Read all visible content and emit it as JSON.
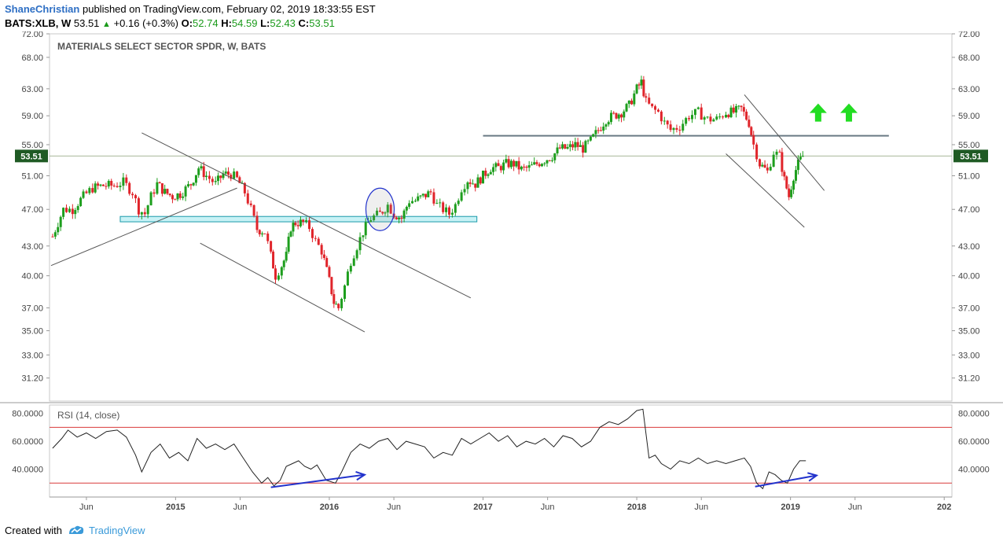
{
  "header": {
    "author": "ShaneChristian",
    "published": "published on TradingView.com, February 02, 2019 18:33:55 EST",
    "symbol": "BATS:XLB, W",
    "last": "53.51",
    "change": "+0.16 (+0.3%)",
    "o_label": "O:",
    "o_value": "52.74",
    "h_label": "H:",
    "h_value": "54.59",
    "l_label": "L:",
    "l_value": "52.43",
    "c_label": "C:",
    "c_value": "53.51"
  },
  "footer": {
    "created": "Created with",
    "brand": "TradingView"
  },
  "colors": {
    "up": "#1d9e1d",
    "down": "#e0242a",
    "rsi_band": "#d93a3a",
    "annotation_blue": "#2233cc",
    "arrow_green": "#22dd22",
    "support_fill": "#c8f2f6",
    "support_stroke": "#1a9aaa",
    "resistance": "#6a7a84",
    "price_tag_bg": "#1f5a24"
  },
  "chart_data": [
    {
      "type": "candlestick",
      "title": "MATERIALS SELECT SECTOR SPDR, W, BATS",
      "price_axis_ticks": [
        "72.00",
        "68.00",
        "63.00",
        "59.00",
        "55.00",
        "51.00",
        "47.00",
        "43.00",
        "40.00",
        "37.00",
        "35.00",
        "33.00",
        "31.20"
      ],
      "time_axis_ticks": [
        "Jun",
        "2015",
        "Jun",
        "2016",
        "Jun",
        "2017",
        "Jun",
        "2018",
        "Jun",
        "2019",
        "Jun",
        "202"
      ],
      "last_price_label": "53.51",
      "scale": "log",
      "ylim": [
        29.5,
        72.0
      ],
      "x_range": [
        2014.18,
        2020.05
      ],
      "close_series": [
        [
          2014.2,
          44.0
        ],
        [
          2014.27,
          47.0
        ],
        [
          2014.33,
          47.0
        ],
        [
          2014.4,
          48.5
        ],
        [
          2014.46,
          49.5
        ],
        [
          2014.53,
          49.8
        ],
        [
          2014.6,
          49.8
        ],
        [
          2014.66,
          50.2
        ],
        [
          2014.72,
          49.0
        ],
        [
          2014.76,
          47.0
        ],
        [
          2014.8,
          46.5
        ],
        [
          2014.84,
          48.5
        ],
        [
          2014.88,
          50.0
        ],
        [
          2014.93,
          49.0
        ],
        [
          2014.98,
          48.5
        ],
        [
          2015.03,
          48.8
        ],
        [
          2015.1,
          50.0
        ],
        [
          2015.15,
          52.0
        ],
        [
          2015.2,
          51.0
        ],
        [
          2015.26,
          50.0
        ],
        [
          2015.31,
          51.2
        ],
        [
          2015.36,
          51.2
        ],
        [
          2015.4,
          50.6
        ],
        [
          2015.45,
          49.0
        ],
        [
          2015.49,
          47.0
        ],
        [
          2015.53,
          44.8
        ],
        [
          2015.58,
          44.5
        ],
        [
          2015.62,
          42.0
        ],
        [
          2015.65,
          40.0
        ],
        [
          2015.69,
          41.0
        ],
        [
          2015.72,
          42.0
        ],
        [
          2015.75,
          45.0
        ],
        [
          2015.78,
          45.5
        ],
        [
          2015.83,
          45.5
        ],
        [
          2015.87,
          45.0
        ],
        [
          2015.91,
          43.5
        ],
        [
          2015.95,
          42.5
        ],
        [
          2016.0,
          39.5
        ],
        [
          2016.03,
          37.5
        ],
        [
          2016.06,
          37.0
        ],
        [
          2016.1,
          39.0
        ],
        [
          2016.14,
          41.5
        ],
        [
          2016.18,
          43.0
        ],
        [
          2016.22,
          44.5
        ],
        [
          2016.27,
          46.0
        ],
        [
          2016.33,
          46.5
        ],
        [
          2016.38,
          47.5
        ],
        [
          2016.42,
          46.5
        ],
        [
          2016.47,
          46.0
        ],
        [
          2016.52,
          48.0
        ],
        [
          2016.56,
          48.0
        ],
        [
          2016.61,
          48.5
        ],
        [
          2016.66,
          49.0
        ],
        [
          2016.7,
          47.5
        ],
        [
          2016.74,
          47.0
        ],
        [
          2016.78,
          46.5
        ],
        [
          2016.82,
          47.5
        ],
        [
          2016.86,
          49.5
        ],
        [
          2016.9,
          50.5
        ],
        [
          2016.95,
          50.0
        ],
        [
          2017.0,
          51.0
        ],
        [
          2017.05,
          52.0
        ],
        [
          2017.1,
          52.0
        ],
        [
          2017.15,
          52.5
        ],
        [
          2017.2,
          52.5
        ],
        [
          2017.25,
          51.8
        ],
        [
          2017.3,
          52.0
        ],
        [
          2017.35,
          52.5
        ],
        [
          2017.4,
          53.0
        ],
        [
          2017.45,
          53.5
        ],
        [
          2017.5,
          54.5
        ],
        [
          2017.55,
          54.5
        ],
        [
          2017.6,
          55.0
        ],
        [
          2017.65,
          54.5
        ],
        [
          2017.7,
          55.5
        ],
        [
          2017.75,
          57.0
        ],
        [
          2017.8,
          58.5
        ],
        [
          2017.85,
          59.0
        ],
        [
          2017.9,
          59.5
        ],
        [
          2017.95,
          60.5
        ],
        [
          2018.0,
          63.0
        ],
        [
          2018.03,
          64.0
        ],
        [
          2018.06,
          61.0
        ],
        [
          2018.1,
          60.0
        ],
        [
          2018.14,
          59.5
        ],
        [
          2018.18,
          58.0
        ],
        [
          2018.22,
          57.0
        ],
        [
          2018.28,
          57.5
        ],
        [
          2018.34,
          59.0
        ],
        [
          2018.4,
          59.5
        ],
        [
          2018.46,
          58.5
        ],
        [
          2018.52,
          58.5
        ],
        [
          2018.58,
          59.5
        ],
        [
          2018.63,
          59.5
        ],
        [
          2018.68,
          60.0
        ],
        [
          2018.73,
          58.0
        ],
        [
          2018.76,
          55.0
        ],
        [
          2018.8,
          52.5
        ],
        [
          2018.85,
          51.5
        ],
        [
          2018.89,
          54.0
        ],
        [
          2018.93,
          53.5
        ],
        [
          2018.96,
          50.5
        ],
        [
          2018.99,
          48.5
        ],
        [
          2019.02,
          51.0
        ],
        [
          2019.05,
          52.5
        ],
        [
          2019.08,
          53.51
        ]
      ],
      "support_zone": {
        "x_from": 2014.64,
        "x_to": 2016.96,
        "y_from": 45.6,
        "y_to": 46.2
      },
      "resistance_line": {
        "x_from": 2017.0,
        "x_to": 2019.64,
        "y": 56.2
      },
      "trend_lines": [
        {
          "x": [
            2014.19,
            2015.4
          ],
          "y": [
            41.0,
            49.5
          ]
        },
        {
          "x": [
            2014.78,
            2016.92
          ],
          "y": [
            56.6,
            37.9
          ]
        },
        {
          "x": [
            2015.16,
            2016.23
          ],
          "y": [
            43.3,
            34.9
          ]
        },
        {
          "x": [
            2018.7,
            2019.22
          ],
          "y": [
            62.1,
            49.2
          ]
        },
        {
          "x": [
            2018.58,
            2019.09
          ],
          "y": [
            53.8,
            45.0
          ]
        }
      ],
      "ellipse_marker": {
        "x": 2016.33,
        "y": 47.0
      },
      "up_arrows": [
        {
          "x": 2019.18,
          "y": 59.3
        },
        {
          "x": 2019.38,
          "y": 59.3
        }
      ]
    },
    {
      "type": "line",
      "title": "RSI (14, close)",
      "yticks": [
        "80.0000",
        "60.0000",
        "40.0000"
      ],
      "ylim": [
        20,
        86
      ],
      "bands": [
        70,
        30
      ],
      "values": [
        [
          2014.2,
          55
        ],
        [
          2014.26,
          62
        ],
        [
          2014.3,
          68
        ],
        [
          2014.36,
          63
        ],
        [
          2014.42,
          66
        ],
        [
          2014.48,
          62
        ],
        [
          2014.55,
          67
        ],
        [
          2014.62,
          68
        ],
        [
          2014.68,
          63
        ],
        [
          2014.74,
          50
        ],
        [
          2014.78,
          38
        ],
        [
          2014.84,
          52
        ],
        [
          2014.9,
          58
        ],
        [
          2014.96,
          48
        ],
        [
          2015.02,
          52
        ],
        [
          2015.08,
          46
        ],
        [
          2015.14,
          62
        ],
        [
          2015.2,
          55
        ],
        [
          2015.26,
          58
        ],
        [
          2015.32,
          54
        ],
        [
          2015.38,
          58
        ],
        [
          2015.44,
          48
        ],
        [
          2015.5,
          38
        ],
        [
          2015.56,
          30
        ],
        [
          2015.6,
          34
        ],
        [
          2015.64,
          28
        ],
        [
          2015.68,
          32
        ],
        [
          2015.72,
          42
        ],
        [
          2015.76,
          44
        ],
        [
          2015.8,
          46
        ],
        [
          2015.84,
          42
        ],
        [
          2015.88,
          40
        ],
        [
          2015.92,
          43
        ],
        [
          2015.98,
          32
        ],
        [
          2016.04,
          30
        ],
        [
          2016.08,
          38
        ],
        [
          2016.14,
          52
        ],
        [
          2016.2,
          58
        ],
        [
          2016.26,
          55
        ],
        [
          2016.32,
          60
        ],
        [
          2016.38,
          62
        ],
        [
          2016.44,
          54
        ],
        [
          2016.5,
          60
        ],
        [
          2016.56,
          58
        ],
        [
          2016.62,
          56
        ],
        [
          2016.68,
          48
        ],
        [
          2016.74,
          52
        ],
        [
          2016.8,
          50
        ],
        [
          2016.86,
          62
        ],
        [
          2016.92,
          58
        ],
        [
          2016.98,
          62
        ],
        [
          2017.04,
          66
        ],
        [
          2017.1,
          60
        ],
        [
          2017.16,
          64
        ],
        [
          2017.22,
          56
        ],
        [
          2017.28,
          60
        ],
        [
          2017.34,
          58
        ],
        [
          2017.4,
          62
        ],
        [
          2017.46,
          56
        ],
        [
          2017.52,
          64
        ],
        [
          2017.58,
          62
        ],
        [
          2017.64,
          56
        ],
        [
          2017.7,
          60
        ],
        [
          2017.76,
          70
        ],
        [
          2017.82,
          74
        ],
        [
          2017.88,
          72
        ],
        [
          2017.94,
          76
        ],
        [
          2018.0,
          82
        ],
        [
          2018.04,
          83
        ],
        [
          2018.08,
          48
        ],
        [
          2018.12,
          50
        ],
        [
          2018.16,
          44
        ],
        [
          2018.22,
          40
        ],
        [
          2018.28,
          46
        ],
        [
          2018.34,
          44
        ],
        [
          2018.4,
          48
        ],
        [
          2018.46,
          44
        ],
        [
          2018.52,
          46
        ],
        [
          2018.58,
          44
        ],
        [
          2018.64,
          46
        ],
        [
          2018.7,
          48
        ],
        [
          2018.74,
          42
        ],
        [
          2018.78,
          30
        ],
        [
          2018.82,
          26
        ],
        [
          2018.86,
          38
        ],
        [
          2018.9,
          36
        ],
        [
          2018.94,
          32
        ],
        [
          2018.98,
          30
        ],
        [
          2019.02,
          40
        ],
        [
          2019.06,
          46
        ],
        [
          2019.1,
          46
        ]
      ],
      "divergence_arrows": [
        {
          "x": [
            2015.62,
            2016.23
          ],
          "y": [
            27.0,
            36.0
          ]
        },
        {
          "x": [
            2018.77,
            2019.17
          ],
          "y": [
            27.5,
            35.5
          ]
        }
      ]
    }
  ]
}
